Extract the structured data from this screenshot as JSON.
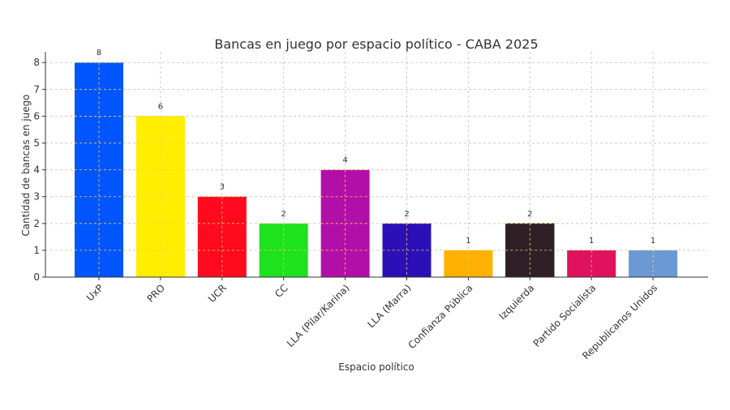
{
  "chart_data": {
    "type": "bar",
    "title": "Bancas en juego por espacio político - CABA 2025",
    "xlabel": "Espacio político",
    "ylabel": "Cantidad de bancas en juego",
    "categories": [
      "UxP",
      "PRO",
      "UCR",
      "CC",
      "LLA (Pilar/Karina)",
      "LLA (Marra)",
      "Confianza Pública",
      "Izquierda",
      "Partido Socialista",
      "Republicanos Unidos"
    ],
    "values": [
      8,
      6,
      3,
      2,
      4,
      2,
      1,
      2,
      1,
      1
    ],
    "colors": [
      "#0055ff",
      "#ffee00",
      "#ff0a1e",
      "#1de21d",
      "#b20fa8",
      "#2c10b7",
      "#ffb000",
      "#2e2026",
      "#e0115f",
      "#6a99d6"
    ],
    "ylim": [
      0,
      8.4
    ],
    "yticks": [
      0,
      1,
      2,
      3,
      4,
      5,
      6,
      7,
      8
    ],
    "grid": true,
    "data_labels": true
  }
}
